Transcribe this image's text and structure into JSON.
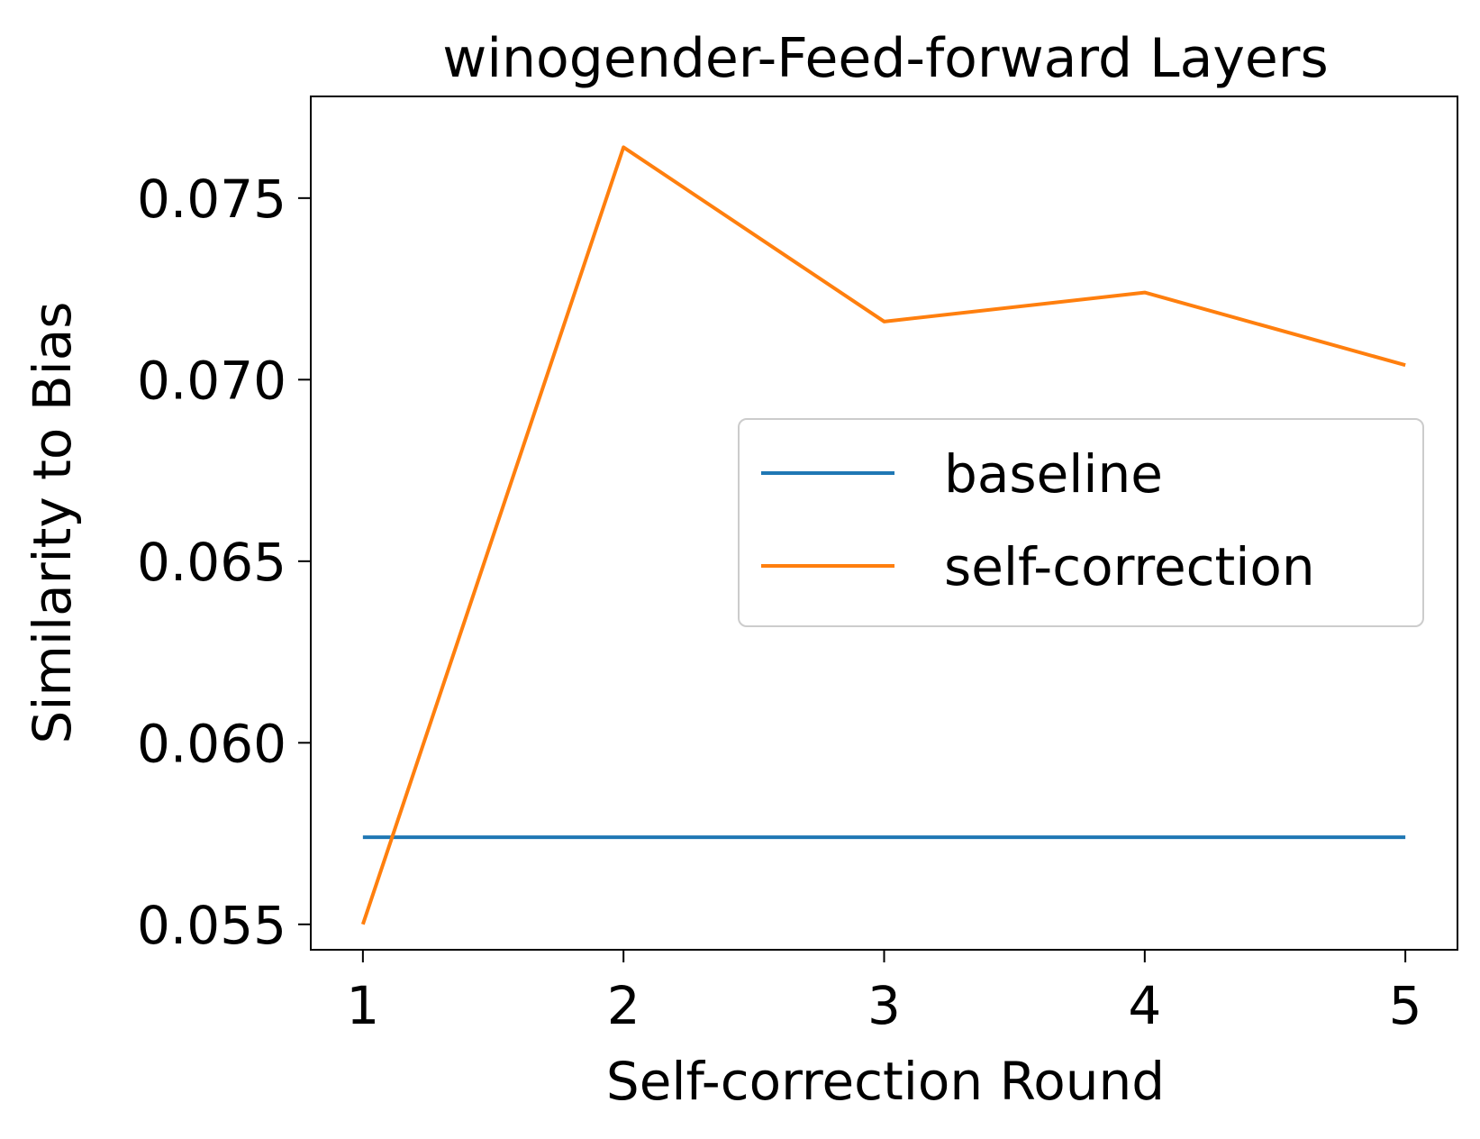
{
  "chart_data": {
    "type": "line",
    "title": "winogender-Feed-forward Layers",
    "xlabel": "Self-correction Round",
    "ylabel": "Similarity to Bias",
    "x": [
      1,
      2,
      3,
      4,
      5
    ],
    "x_ticks": [
      "1",
      "2",
      "3",
      "4",
      "5"
    ],
    "xlim": [
      0.8,
      5.2
    ],
    "y_ticks": [
      "0.055",
      "0.060",
      "0.065",
      "0.070",
      "0.075"
    ],
    "ylim": [
      0.0543,
      0.0778
    ],
    "grid": false,
    "legend_position": "center-right",
    "series": [
      {
        "name": "baseline",
        "color": "#1f77b4",
        "values": [
          0.0574,
          0.0574,
          0.0574,
          0.0574,
          0.0574
        ]
      },
      {
        "name": "self-correction",
        "color": "#ff7f0e",
        "values": [
          0.055,
          0.0764,
          0.0716,
          0.0724,
          0.0704
        ]
      }
    ]
  }
}
